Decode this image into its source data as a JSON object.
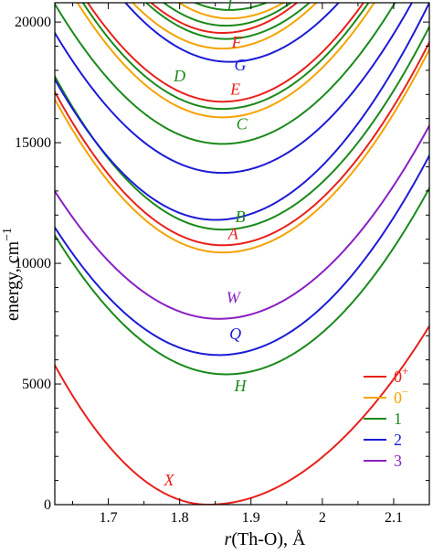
{
  "chart_data": {
    "type": "line",
    "title": "",
    "xlabel_var": "r",
    "xlabel_rest": "(Th-O), Å",
    "ylabel": "energy, cm",
    "ylabel_exp": "−1",
    "xlim": [
      1.625,
      2.15
    ],
    "ylim": [
      0,
      20800
    ],
    "xticks": [
      {
        "value": 1.7,
        "label": "1.7"
      },
      {
        "value": 1.8,
        "label": "1.8"
      },
      {
        "value": 1.9,
        "label": "1.9"
      },
      {
        "value": 2.0,
        "label": "2"
      },
      {
        "value": 2.1,
        "label": "2.1"
      }
    ],
    "yticks": [
      {
        "value": 0,
        "label": "0"
      },
      {
        "value": 5000,
        "label": "5000"
      },
      {
        "value": 10000,
        "label": "10000"
      },
      {
        "value": 15000,
        "label": "15000"
      },
      {
        "value": 20000,
        "label": "20000"
      }
    ],
    "colors": {
      "0+": "#e8211c",
      "0-": "#f5a300",
      "1": "#1a8a1a",
      "2": "#1c1cd6",
      "3": "#8a1fc4"
    },
    "legend": {
      "placement": "bottom-right",
      "entries": [
        {
          "symmetry": "0+",
          "base": "0",
          "sup": "+"
        },
        {
          "symmetry": "0-",
          "base": "0",
          "sup": "−"
        },
        {
          "symmetry": "1",
          "base": "1",
          "sup": ""
        },
        {
          "symmetry": "2",
          "base": "2",
          "sup": ""
        },
        {
          "symmetry": "3",
          "base": "3",
          "sup": ""
        }
      ]
    },
    "curves": [
      {
        "symmetry": "0+",
        "Te": 0,
        "re": 1.84,
        "kL": 125000,
        "kR": 77000
      },
      {
        "symmetry": "1",
        "Te": 5400,
        "re": 1.865,
        "kL": 100000,
        "kR": 95000
      },
      {
        "symmetry": "2",
        "Te": 6200,
        "re": 1.855,
        "kL": 100000,
        "kR": 95000
      },
      {
        "symmetry": "3",
        "Te": 7700,
        "re": 1.855,
        "kL": 100000,
        "kR": 92000
      },
      {
        "symmetry": "0-",
        "Te": 10450,
        "re": 1.86,
        "kL": 115000,
        "kR": 100000
      },
      {
        "symmetry": "0+",
        "Te": 10750,
        "re": 1.86,
        "kL": 115000,
        "kR": 100000
      },
      {
        "symmetry": "1",
        "Te": 11400,
        "re": 1.86,
        "kL": 115000,
        "kR": 100000
      },
      {
        "symmetry": "2",
        "Te": 11800,
        "re": 1.85,
        "kL": 115000,
        "kR": 100000
      },
      {
        "symmetry": "2",
        "Te": 13750,
        "re": 1.86,
        "kL": 105000,
        "kR": 100000
      },
      {
        "symmetry": "1",
        "Te": 14950,
        "re": 1.86,
        "kL": 105000,
        "kR": 100000
      },
      {
        "symmetry": "0-",
        "Te": 16050,
        "re": 1.86,
        "kL": 115000,
        "kR": 105000
      },
      {
        "symmetry": "1",
        "Te": 16400,
        "re": 1.86,
        "kL": 115000,
        "kR": 105000
      },
      {
        "symmetry": "0+",
        "Te": 16700,
        "re": 1.86,
        "kL": 115000,
        "kR": 105000
      },
      {
        "symmetry": "2",
        "Te": 18350,
        "re": 1.87,
        "kL": 115000,
        "kR": 105000
      },
      {
        "symmetry": "0-",
        "Te": 18900,
        "re": 1.86,
        "kL": 120000,
        "kR": 110000
      },
      {
        "symmetry": "1",
        "Te": 19300,
        "re": 1.865,
        "kL": 120000,
        "kR": 110000
      },
      {
        "symmetry": "0+",
        "Te": 19550,
        "re": 1.86,
        "kL": 125000,
        "kR": 115000
      },
      {
        "symmetry": "1",
        "Te": 19850,
        "re": 1.865,
        "kL": 125000,
        "kR": 115000
      },
      {
        "symmetry": "0-",
        "Te": 20150,
        "re": 1.87,
        "kL": 130000,
        "kR": 115000
      },
      {
        "symmetry": "1",
        "Te": 20500,
        "re": 1.87,
        "kL": 130000,
        "kR": 115000
      }
    ],
    "annotations": [
      {
        "text": "X",
        "symmetry": "0+",
        "x": 1.785,
        "y": 800
      },
      {
        "text": "H",
        "symmetry": "1",
        "x": 1.885,
        "y": 4700
      },
      {
        "text": "Q",
        "symmetry": "2",
        "x": 1.878,
        "y": 6850
      },
      {
        "text": "W",
        "symmetry": "3",
        "x": 1.875,
        "y": 8350
      },
      {
        "text": "A",
        "symmetry": "0+",
        "x": 1.875,
        "y": 11000
      },
      {
        "text": "B",
        "symmetry": "1",
        "x": 1.885,
        "y": 11700
      },
      {
        "text": "C",
        "symmetry": "1",
        "x": 1.887,
        "y": 15550
      },
      {
        "text": "E",
        "symmetry": "0+",
        "x": 1.878,
        "y": 17000
      },
      {
        "text": "D",
        "symmetry": "1",
        "x": 1.8,
        "y": 17550
      },
      {
        "text": "G",
        "symmetry": "2",
        "x": 1.885,
        "y": 18000
      },
      {
        "text": "F",
        "symmetry": "0+",
        "x": 1.88,
        "y": 18950
      },
      {
        "text": "I",
        "symmetry": "1",
        "x": 1.87,
        "y": 20500
      }
    ]
  }
}
